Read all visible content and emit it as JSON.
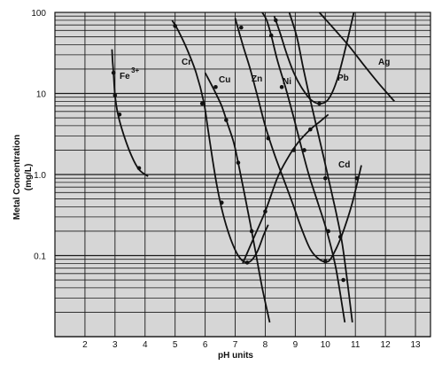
{
  "chart_data": {
    "type": "line",
    "xlabel": "pH units",
    "ylabel_line1": "Metal Concentration",
    "ylabel_line2": "(mg/L)",
    "xlim": [
      1,
      13.5
    ],
    "ylim": [
      0.01,
      100
    ],
    "y_scale": "log",
    "grid": true,
    "legend": "none",
    "x_ticks": [
      2,
      3,
      4,
      5,
      6,
      7,
      8,
      9,
      10,
      11,
      12,
      13
    ],
    "x_tick_labels": [
      "2",
      "3",
      "4",
      "5",
      "6",
      "7",
      "8",
      "9",
      "10",
      "11",
      "12",
      "13"
    ],
    "y_ticks": [
      100,
      10,
      1,
      0.1
    ],
    "y_tick_labels": [
      "100",
      "10",
      "1.0",
      "0.1"
    ],
    "colors": {
      "plot_bg": "#d6d6d6",
      "grid": "#1a1a1a",
      "curve": "#111111"
    },
    "series": [
      {
        "name": "Fe",
        "name_sup": "3+",
        "points": [
          [
            2.9,
            35
          ],
          [
            2.92,
            25
          ],
          [
            2.95,
            18
          ],
          [
            3.0,
            9.5
          ],
          [
            3.1,
            5.5
          ],
          [
            3.3,
            3.0
          ],
          [
            3.55,
            1.7
          ],
          [
            3.8,
            1.15
          ],
          [
            4.1,
            0.95
          ]
        ],
        "markers": [
          [
            2.95,
            18
          ],
          [
            3.0,
            9.5
          ],
          [
            3.15,
            5.5
          ],
          [
            3.8,
            1.2
          ]
        ]
      },
      {
        "name": "Cr",
        "points": [
          [
            4.9,
            80
          ],
          [
            5.1,
            60
          ],
          [
            5.4,
            35
          ],
          [
            5.7,
            18
          ],
          [
            5.95,
            8
          ],
          [
            6.1,
            3.5
          ],
          [
            6.25,
            1.5
          ],
          [
            6.4,
            0.7
          ],
          [
            6.6,
            0.32
          ],
          [
            6.85,
            0.16
          ],
          [
            7.1,
            0.1
          ],
          [
            7.35,
            0.082
          ],
          [
            7.55,
            0.088
          ],
          [
            7.75,
            0.115
          ],
          [
            7.95,
            0.18
          ],
          [
            8.1,
            0.24
          ]
        ],
        "markers": [
          [
            5.0,
            68
          ],
          [
            5.9,
            7.5
          ],
          [
            6.55,
            0.45
          ],
          [
            7.4,
            0.082
          ]
        ]
      },
      {
        "name": "Cu",
        "points": [
          [
            6.0,
            18
          ],
          [
            6.3,
            11
          ],
          [
            6.55,
            7
          ],
          [
            6.75,
            4.2
          ],
          [
            6.95,
            2.5
          ],
          [
            7.1,
            1.4
          ],
          [
            7.3,
            0.6
          ],
          [
            7.5,
            0.25
          ],
          [
            7.7,
            0.1
          ],
          [
            7.9,
            0.04
          ],
          [
            8.15,
            0.015
          ]
        ],
        "markers": [
          [
            6.35,
            12
          ],
          [
            6.7,
            4.7
          ],
          [
            7.1,
            1.4
          ],
          [
            7.55,
            0.2
          ]
        ]
      },
      {
        "name": "Zn",
        "points": [
          [
            7.0,
            85
          ],
          [
            7.25,
            40
          ],
          [
            7.5,
            20
          ],
          [
            7.75,
            9
          ],
          [
            8.0,
            4
          ],
          [
            8.3,
            1.8
          ],
          [
            8.6,
            0.9
          ],
          [
            8.9,
            0.45
          ],
          [
            9.2,
            0.22
          ],
          [
            9.5,
            0.12
          ],
          [
            9.8,
            0.09
          ],
          [
            10.1,
            0.085
          ],
          [
            10.35,
            0.12
          ],
          [
            10.6,
            0.2
          ],
          [
            10.9,
            0.45
          ],
          [
            11.2,
            1.3
          ]
        ],
        "markers": [
          [
            7.2,
            65
          ],
          [
            8.1,
            2.8
          ],
          [
            10.0,
            0.085
          ],
          [
            10.5,
            0.17
          ],
          [
            11.05,
            0.9
          ]
        ]
      },
      {
        "name": "Ni",
        "points": [
          [
            7.9,
            100
          ],
          [
            8.05,
            80
          ],
          [
            8.2,
            52
          ],
          [
            8.4,
            26
          ],
          [
            8.7,
            11
          ],
          [
            8.95,
            5
          ],
          [
            9.2,
            2.2
          ],
          [
            9.45,
            1.0
          ],
          [
            9.75,
            0.45
          ],
          [
            10.05,
            0.2
          ],
          [
            10.35,
            0.07
          ],
          [
            10.65,
            0.015
          ]
        ],
        "markers": [
          [
            8.2,
            52
          ],
          [
            8.55,
            12
          ],
          [
            9.3,
            2.0
          ],
          [
            10.1,
            0.2
          ]
        ]
      },
      {
        "name": "Pb",
        "points": [
          [
            8.3,
            90
          ],
          [
            8.5,
            55
          ],
          [
            8.7,
            32
          ],
          [
            8.95,
            18
          ],
          [
            9.2,
            12
          ],
          [
            9.5,
            8.5
          ],
          [
            9.8,
            7.5
          ],
          [
            10.1,
            8.5
          ],
          [
            10.4,
            15
          ],
          [
            10.7,
            40
          ],
          [
            10.95,
            100
          ]
        ],
        "markers": [
          [
            8.35,
            80
          ],
          [
            9.8,
            7.5
          ]
        ]
      },
      {
        "name": "Cd",
        "points": [
          [
            8.8,
            100
          ],
          [
            9.05,
            50
          ],
          [
            9.25,
            22
          ],
          [
            9.45,
            10
          ],
          [
            9.7,
            4
          ],
          [
            9.95,
            1.6
          ],
          [
            10.15,
            0.75
          ],
          [
            10.35,
            0.35
          ],
          [
            10.55,
            0.15
          ],
          [
            10.7,
            0.06
          ],
          [
            10.9,
            0.015
          ]
        ],
        "markers": [
          [
            10.0,
            0.9
          ],
          [
            10.6,
            0.05
          ]
        ]
      },
      {
        "name": "",
        "points": [
          [
            7.25,
            0.08
          ],
          [
            7.6,
            0.16
          ],
          [
            8.0,
            0.35
          ],
          [
            8.4,
            0.9
          ],
          [
            8.75,
            1.6
          ],
          [
            9.1,
            2.5
          ],
          [
            9.5,
            3.6
          ],
          [
            9.85,
            4.6
          ],
          [
            10.1,
            5.5
          ]
        ],
        "markers": [
          [
            8.0,
            0.35
          ],
          [
            8.95,
            2.0
          ],
          [
            9.5,
            3.6
          ]
        ]
      },
      {
        "name": "Ag",
        "points": [
          [
            9.8,
            100
          ],
          [
            10.3,
            62
          ],
          [
            10.8,
            38
          ],
          [
            11.3,
            22
          ],
          [
            11.8,
            13
          ],
          [
            12.3,
            8
          ]
        ],
        "markers": []
      }
    ]
  }
}
